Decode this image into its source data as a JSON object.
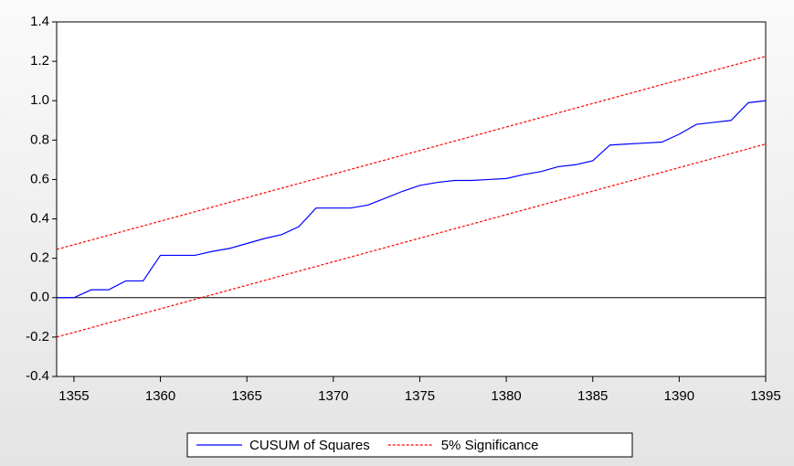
{
  "chart_data": {
    "type": "line",
    "x": [
      1354,
      1355,
      1356,
      1357,
      1358,
      1359,
      1360,
      1361,
      1362,
      1363,
      1364,
      1365,
      1366,
      1367,
      1368,
      1369,
      1370,
      1371,
      1372,
      1373,
      1374,
      1375,
      1376,
      1377,
      1378,
      1379,
      1380,
      1381,
      1382,
      1383,
      1384,
      1385,
      1386,
      1387,
      1388,
      1389,
      1390,
      1391,
      1392,
      1393,
      1394,
      1395
    ],
    "series": [
      {
        "name": "CUSUM of Squares",
        "color": "#0000ff",
        "values": [
          0.0,
          0.0,
          0.04,
          0.04,
          0.085,
          0.085,
          0.215,
          0.215,
          0.215,
          0.235,
          0.25,
          0.275,
          0.3,
          0.32,
          0.36,
          0.455,
          0.455,
          0.455,
          0.47,
          0.505,
          0.54,
          0.57,
          0.585,
          0.595,
          0.595,
          0.6,
          0.605,
          0.625,
          0.64,
          0.665,
          0.675,
          0.695,
          0.775,
          0.78,
          0.785,
          0.79,
          0.83,
          0.88,
          0.89,
          0.9,
          0.99,
          1.0
        ]
      },
      {
        "name": "5% Significance",
        "color": "#ff0000",
        "dashed": true,
        "x": [
          1354,
          1395
        ],
        "upper": [
          0.245,
          1.225
        ],
        "lower": [
          -0.2,
          0.78
        ]
      }
    ],
    "xlim": [
      1354,
      1395
    ],
    "xticks": [
      1355,
      1360,
      1365,
      1370,
      1375,
      1380,
      1385,
      1390,
      1395
    ],
    "ylim": [
      -0.4,
      1.4
    ],
    "yticks": [
      {
        "value": -0.4,
        "label": "-0.4"
      },
      {
        "value": -0.2,
        "label": "-0.2"
      },
      {
        "value": 0,
        "label": "0.0"
      },
      {
        "value": 0.2,
        "label": "0.2"
      },
      {
        "value": 0.4,
        "label": "0.4"
      },
      {
        "value": 0.6,
        "label": "0.6"
      },
      {
        "value": 0.8,
        "label": "0.8"
      },
      {
        "value": 1,
        "label": "1.0"
      },
      {
        "value": 1.2,
        "label": "1.2"
      },
      {
        "value": 1.4,
        "label": "1.4"
      }
    ],
    "zero_line": true,
    "legend": "bottom"
  }
}
